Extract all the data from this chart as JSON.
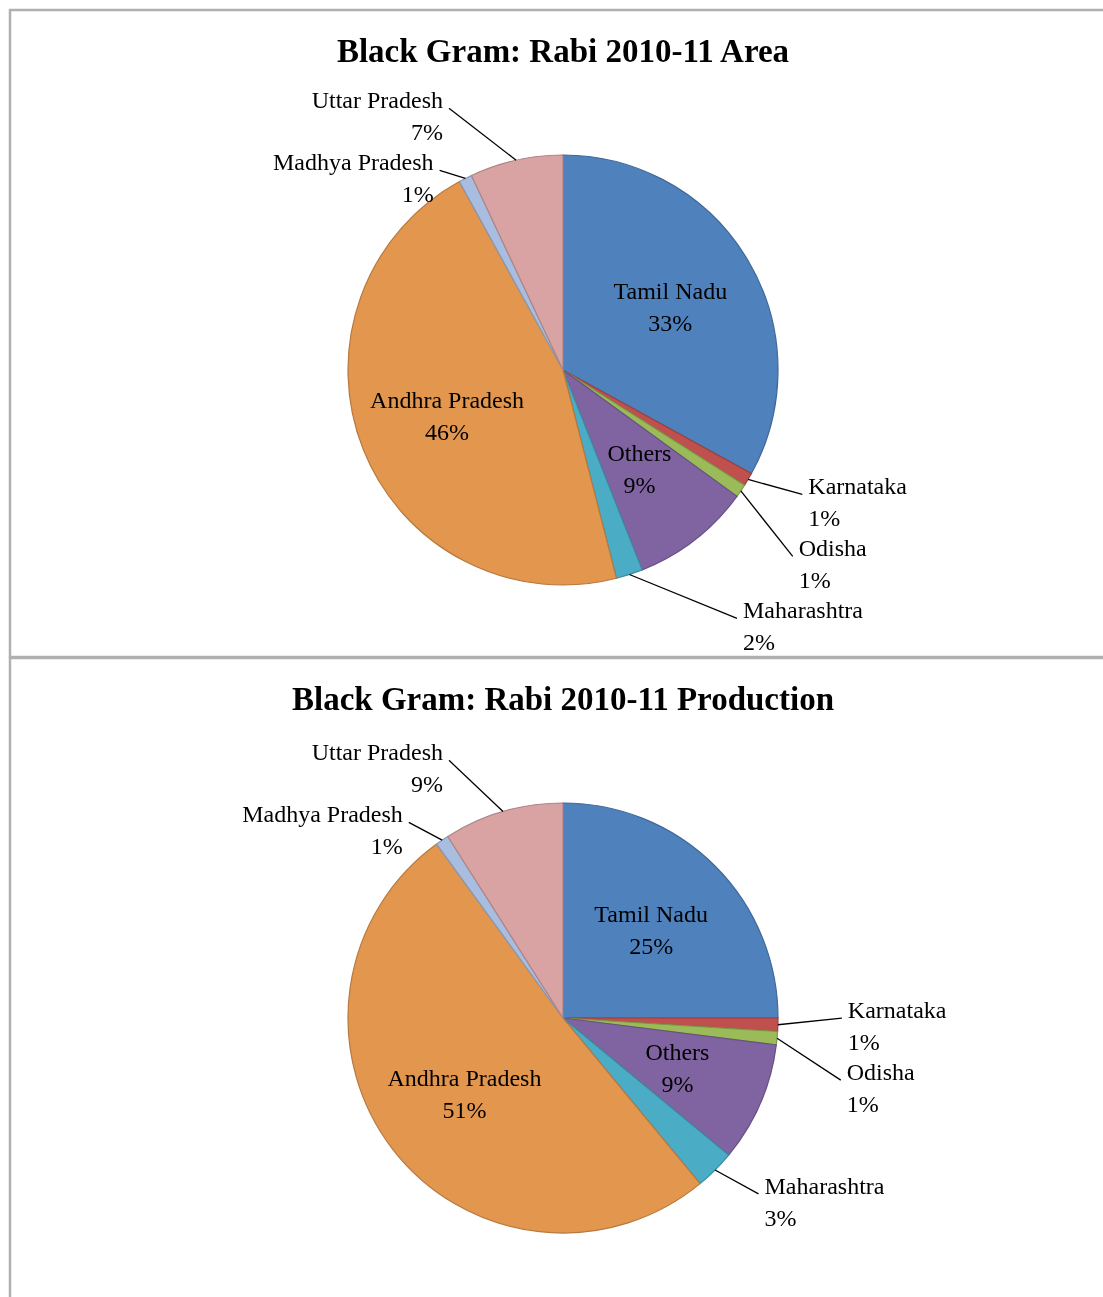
{
  "chart_data": [
    {
      "type": "pie",
      "title": "Black Gram: Rabi 2010-11 Area",
      "categories": [
        "Tamil Nadu",
        "Karnataka",
        "Odisha",
        "Others",
        "Maharashtra",
        "Andhra Pradesh",
        "Madhya Pradesh",
        "Uttar Pradesh"
      ],
      "values": [
        33,
        1,
        1,
        9,
        2,
        46,
        1,
        7
      ],
      "value_labels": [
        "33%",
        "1%",
        "1%",
        "9%",
        "2%",
        "46%",
        "1%",
        "7%"
      ],
      "colors": [
        "#4f81bd",
        "#c0504d",
        "#9bbb59",
        "#8064a2",
        "#4bacc6",
        "#e3964e",
        "#a9bde0",
        "#d9a3a3"
      ]
    },
    {
      "type": "pie",
      "title": "Black Gram: Rabi 2010-11 Production",
      "categories": [
        "Tamil Nadu",
        "Karnataka",
        "Odisha",
        "Others",
        "Maharashtra",
        "Andhra Pradesh",
        "Madhya Pradesh",
        "Uttar Pradesh"
      ],
      "values": [
        25,
        1,
        1,
        9,
        3,
        51,
        1,
        9
      ],
      "value_labels": [
        "25%",
        "1%",
        "1%",
        "9%",
        "3%",
        "51%",
        "1%",
        "9%"
      ],
      "colors": [
        "#4f81bd",
        "#c0504d",
        "#9bbb59",
        "#8064a2",
        "#4bacc6",
        "#e3964e",
        "#a9bde0",
        "#d9a3a3"
      ]
    }
  ]
}
